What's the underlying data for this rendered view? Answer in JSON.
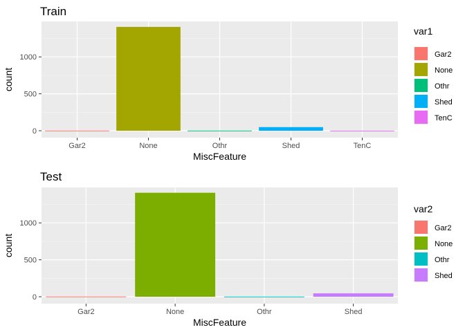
{
  "chart_data": [
    {
      "type": "bar",
      "title": "Train",
      "xlabel": "MiscFeature",
      "ylabel": "count",
      "categories": [
        "Gar2",
        "None",
        "Othr",
        "Shed",
        "TenC"
      ],
      "values": [
        2,
        1406,
        2,
        49,
        1
      ],
      "ylim": [
        0,
        1480
      ],
      "yticks": [
        0,
        500,
        1000
      ],
      "colors": [
        "#F8766D",
        "#A3A500",
        "#00BF7D",
        "#00B0F6",
        "#E76BF3"
      ],
      "legend": {
        "title": "var1",
        "position": "right"
      },
      "grid": true
    },
    {
      "type": "bar",
      "title": "Test",
      "xlabel": "MiscFeature",
      "ylabel": "count",
      "categories": [
        "Gar2",
        "None",
        "Othr",
        "Shed"
      ],
      "values": [
        3,
        1408,
        2,
        46
      ],
      "ylim": [
        0,
        1480
      ],
      "yticks": [
        0,
        500,
        1000
      ],
      "colors": [
        "#F8766D",
        "#7CAE00",
        "#00BFC4",
        "#C77CFF"
      ],
      "legend": {
        "title": "var2",
        "position": "right"
      },
      "grid": true
    }
  ]
}
